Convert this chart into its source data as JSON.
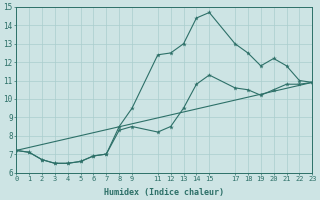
{
  "xlabel": "Humidex (Indice chaleur)",
  "bg_color": "#cde4e4",
  "line_color": "#2d7068",
  "grid_color": "#aacece",
  "xlim": [
    0,
    23
  ],
  "ylim": [
    6,
    15
  ],
  "yticks": [
    6,
    7,
    8,
    9,
    10,
    11,
    12,
    13,
    14,
    15
  ],
  "xtick_positions": [
    0,
    1,
    2,
    3,
    4,
    5,
    6,
    7,
    8,
    9,
    11,
    12,
    13,
    14,
    15,
    17,
    18,
    19,
    20,
    21,
    22,
    23
  ],
  "xtick_labels": [
    "0",
    "1",
    "2",
    "3",
    "4",
    "5",
    "6",
    "7",
    "8",
    "9",
    "11",
    "12",
    "13",
    "14",
    "15",
    "17",
    "18",
    "19",
    "20",
    "21",
    "22",
    "23"
  ],
  "line1_x": [
    0,
    1,
    2,
    3,
    4,
    5,
    6,
    7,
    8,
    9,
    11,
    12,
    13,
    14,
    15,
    17,
    18,
    19,
    20,
    21,
    22,
    23
  ],
  "line1_y": [
    7.2,
    7.1,
    6.7,
    6.5,
    6.5,
    6.6,
    6.9,
    7.0,
    8.5,
    9.5,
    12.4,
    12.5,
    13.0,
    14.4,
    14.7,
    13.0,
    12.5,
    11.8,
    12.2,
    11.8,
    11.0,
    10.9
  ],
  "line2_x": [
    0,
    1,
    2,
    3,
    4,
    5,
    6,
    7,
    8,
    9,
    11,
    12,
    13,
    14,
    15,
    17,
    18,
    19,
    20,
    21,
    22,
    23
  ],
  "line2_y": [
    7.2,
    7.1,
    6.7,
    6.5,
    6.5,
    6.6,
    6.9,
    7.0,
    8.3,
    8.5,
    8.2,
    8.5,
    9.5,
    10.8,
    11.3,
    10.6,
    10.5,
    10.2,
    10.5,
    10.8,
    10.8,
    10.9
  ],
  "line3_x": [
    0,
    23
  ],
  "line3_y": [
    7.2,
    10.9
  ]
}
